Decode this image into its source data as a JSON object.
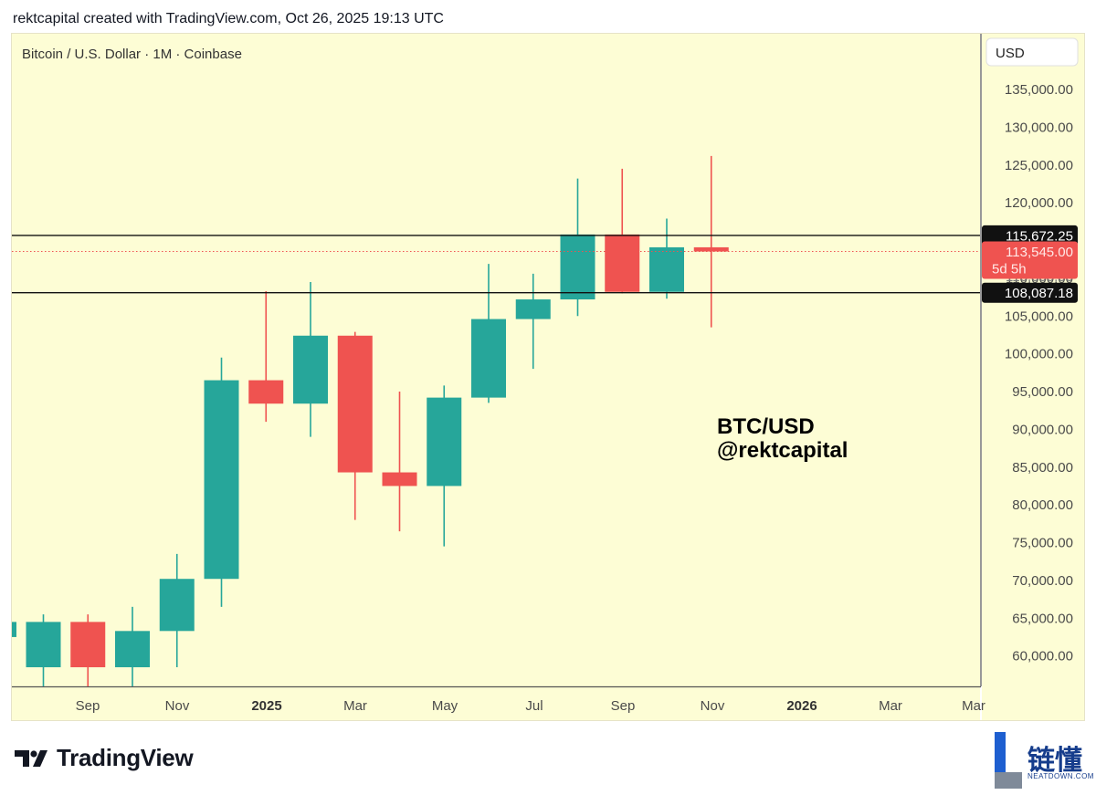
{
  "header": {
    "caption": "rektcapital created with TradingView.com, Oct 26, 2025 19:13 UTC"
  },
  "chart_info": {
    "symbol_line": "Bitcoin / U.S. Dollar · 1M · Coinbase",
    "currency_button": "USD"
  },
  "annotation": {
    "line1": "BTC/USD",
    "line2": "@rektcapital"
  },
  "footer": {
    "brand_word": "TradingView"
  },
  "watermark": {
    "chinese": "链懂",
    "english": "NEATDOWN.COM"
  },
  "colors": {
    "bg": "#fdfdd5",
    "up": "#26a69a",
    "down": "#ef5350",
    "axis_text": "#4a4a4a"
  },
  "chart_data": {
    "type": "candlestick",
    "ylim": [
      55000,
      140000
    ],
    "y_ticks": [
      135000,
      130000,
      125000,
      120000,
      115000,
      110000,
      105000,
      100000,
      95000,
      90000,
      85000,
      80000,
      75000,
      70000,
      65000,
      60000
    ],
    "y_tick_labels": [
      "135,000.00",
      "130,000.00",
      "125,000.00",
      "120,000.00",
      "115,000.00",
      "110,000.00",
      "105,000.00",
      "100,000.00",
      "95,000.00",
      "90,000.00",
      "85,000.00",
      "80,000.00",
      "75,000.00",
      "70,000.00",
      "65,000.00",
      "60,000.00"
    ],
    "x_labels": [
      "Sep",
      "Nov",
      "2025",
      "Mar",
      "May",
      "Jul",
      "Sep",
      "Nov",
      "2026",
      "Mar",
      "Mar"
    ],
    "x_labels_bold": [
      "2025",
      "2026"
    ],
    "candles": [
      {
        "o": 58500,
        "h": 65500,
        "l": 55000,
        "c": 64500
      },
      {
        "o": 64500,
        "h": 65500,
        "l": 55000,
        "c": 58500
      },
      {
        "o": 58500,
        "h": 66500,
        "l": 55000,
        "c": 63300
      },
      {
        "o": 63300,
        "h": 73500,
        "l": 58500,
        "c": 70200
      },
      {
        "o": 70200,
        "h": 99500,
        "l": 66500,
        "c": 96500
      },
      {
        "o": 96500,
        "h": 108300,
        "l": 91000,
        "c": 93400
      },
      {
        "o": 93400,
        "h": 109500,
        "l": 89000,
        "c": 102400
      },
      {
        "o": 102400,
        "h": 102900,
        "l": 78000,
        "c": 84300
      },
      {
        "o": 84300,
        "h": 95000,
        "l": 76500,
        "c": 82500
      },
      {
        "o": 82500,
        "h": 95800,
        "l": 74500,
        "c": 94200
      },
      {
        "o": 94200,
        "h": 111900,
        "l": 93500,
        "c": 104600
      },
      {
        "o": 104600,
        "h": 110600,
        "l": 98000,
        "c": 107200
      },
      {
        "o": 107200,
        "h": 123200,
        "l": 105000,
        "c": 115800
      },
      {
        "o": 115800,
        "h": 124500,
        "l": 108000,
        "c": 108200
      },
      {
        "o": 108200,
        "h": 117900,
        "l": 107300,
        "c": 114100
      },
      {
        "o": 114100,
        "h": 126200,
        "l": 103500,
        "c": 113545
      }
    ],
    "price_lines": [
      {
        "value": 115672.25,
        "label": "115,672.25"
      },
      {
        "value": 108087.18,
        "label": "108,087.18"
      }
    ],
    "current_price": {
      "value": 113545,
      "label": "113,545.00",
      "countdown": "5d 5h"
    },
    "hidden_tick_label": "110,000.00",
    "grid": false
  }
}
